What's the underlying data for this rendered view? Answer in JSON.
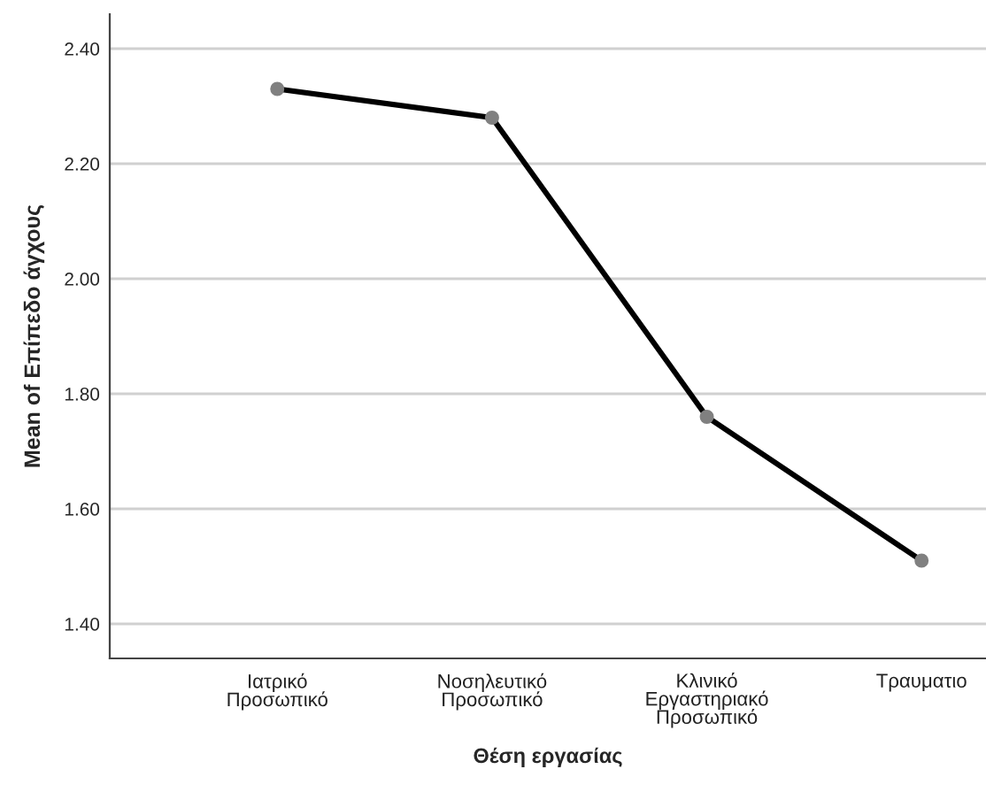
{
  "chart_data": {
    "type": "line",
    "xlabel": "Θέση εργασίας",
    "ylabel": "Mean of Επίπεδο άγχους",
    "categories": [
      "Ιατρικό\nΠροσωπικό",
      "Νοσηλευτικό\nΠροσωπικό",
      "Κλινικό\nΕργαστηριακό\nΠροσωπικό",
      "Τραυματιο"
    ],
    "series": [
      {
        "color": "#000000",
        "values": [
          2.33,
          2.28,
          1.76,
          1.51
        ]
      }
    ],
    "ylim": [
      1.34,
      2.46
    ],
    "yticks": [
      {
        "value": 1.4,
        "label": "1.40"
      },
      {
        "value": 1.6,
        "label": "1.60"
      },
      {
        "value": 1.8,
        "label": "1.80"
      },
      {
        "value": 2.0,
        "label": "2.00"
      },
      {
        "value": 2.2,
        "label": "2.20"
      },
      {
        "value": 2.4,
        "label": "2.40"
      }
    ],
    "grid": "y",
    "marker": "circle",
    "line_style": "solid",
    "legend": false
  }
}
